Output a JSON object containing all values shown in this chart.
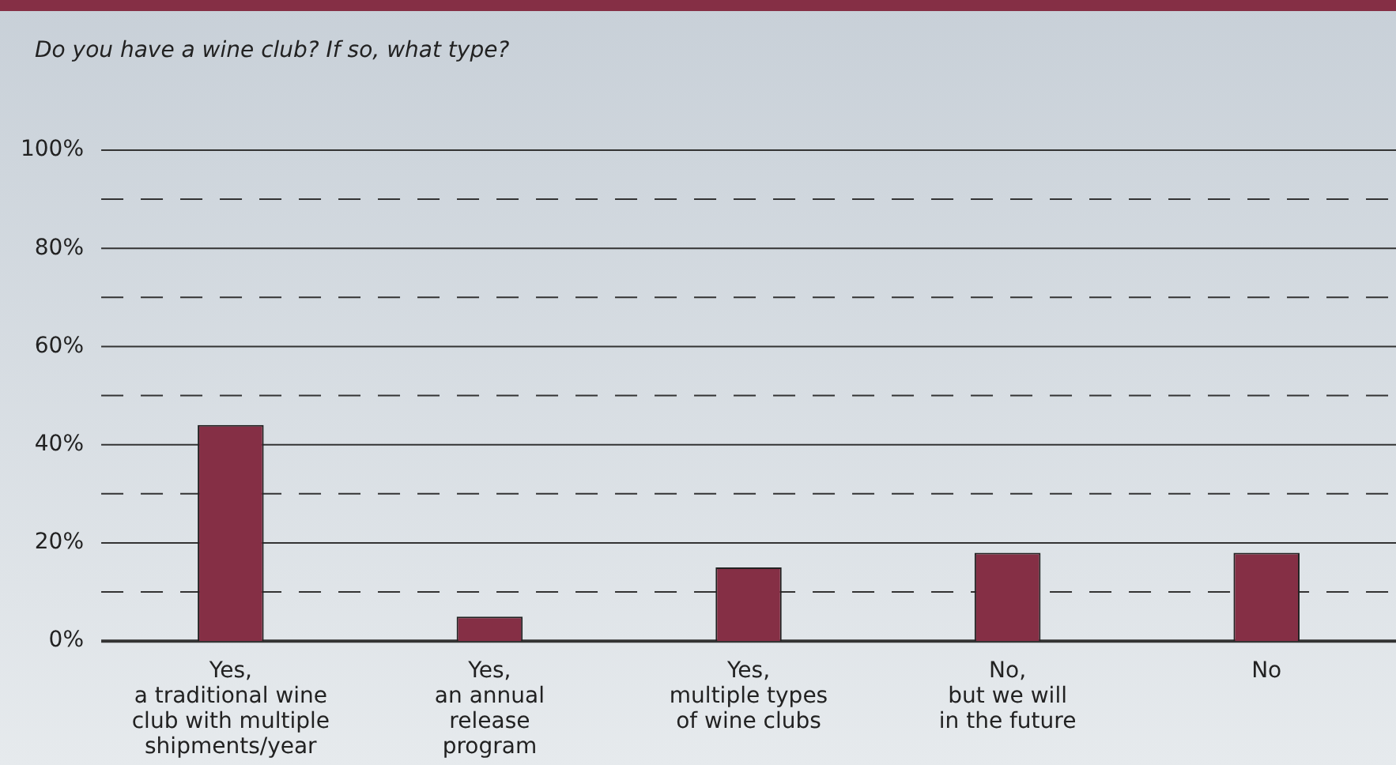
{
  "chart_data": {
    "type": "bar",
    "title": "Do you have a wine club? If so, what type?",
    "categories": [
      "Yes,\na traditional wine\nclub with multiple\nshipments/year",
      "Yes,\nan annual\nrelease\nprogram",
      "Yes,\nmultiple types\nof wine clubs",
      "No,\nbut we will\nin the future",
      "No"
    ],
    "values": [
      44,
      5,
      15,
      18,
      18
    ],
    "color": "#852f45",
    "ylim": [
      0,
      100
    ],
    "yticks": [
      {
        "value": 0,
        "label": "0%"
      },
      {
        "value": 10,
        "label": null
      },
      {
        "value": 20,
        "label": "20%"
      },
      {
        "value": 30,
        "label": null
      },
      {
        "value": 40,
        "label": "40%"
      },
      {
        "value": 50,
        "label": null
      },
      {
        "value": 60,
        "label": "60%"
      },
      {
        "value": 70,
        "label": null
      },
      {
        "value": 80,
        "label": "80%"
      },
      {
        "value": 90,
        "label": null
      },
      {
        "value": 100,
        "label": "100%"
      }
    ],
    "grid": true,
    "legend": false
  }
}
